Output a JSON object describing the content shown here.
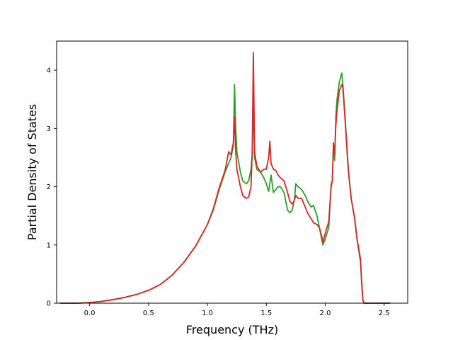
{
  "chart_data": {
    "type": "line",
    "title": "",
    "xlabel": "Frequency (THz)",
    "ylabel": "Partial Density of States",
    "xlim": [
      -0.28,
      2.7
    ],
    "ylim": [
      0,
      4.5
    ],
    "xticks": [
      0.0,
      0.5,
      1.0,
      1.5,
      2.0,
      2.5
    ],
    "xtick_labels": [
      "0.0",
      "0.5",
      "1.0",
      "1.5",
      "2.0",
      "2.5"
    ],
    "yticks": [
      0,
      1,
      2,
      3,
      4
    ],
    "ytick_labels": [
      "0",
      "1",
      "2",
      "3",
      "4"
    ],
    "grid": false,
    "legend": "none",
    "series": [
      {
        "color": "#2ca02c",
        "x": [
          -0.25,
          -0.1,
          0.0,
          0.1,
          0.2,
          0.3,
          0.4,
          0.5,
          0.6,
          0.7,
          0.8,
          0.9,
          1.0,
          1.05,
          1.1,
          1.15,
          1.18,
          1.2,
          1.22,
          1.23,
          1.24,
          1.25,
          1.28,
          1.3,
          1.33,
          1.35,
          1.37,
          1.38,
          1.39,
          1.4,
          1.42,
          1.45,
          1.48,
          1.5,
          1.52,
          1.54,
          1.56,
          1.58,
          1.6,
          1.62,
          1.65,
          1.68,
          1.7,
          1.72,
          1.74,
          1.75,
          1.77,
          1.8,
          1.83,
          1.85,
          1.88,
          1.9,
          1.93,
          1.95,
          1.97,
          1.98,
          2.0,
          2.03,
          2.05,
          2.06,
          2.07,
          2.08,
          2.09,
          2.1,
          2.12,
          2.14,
          2.15,
          2.17,
          2.19,
          2.2,
          2.22,
          2.25,
          2.27,
          2.3,
          2.31,
          2.32,
          2.33,
          2.35,
          2.45,
          2.55
        ],
        "y": [
          0.0,
          0.0,
          0.01,
          0.03,
          0.06,
          0.1,
          0.15,
          0.22,
          0.32,
          0.48,
          0.7,
          0.98,
          1.35,
          1.6,
          1.95,
          2.25,
          2.4,
          2.5,
          2.7,
          3.75,
          3.0,
          2.6,
          2.25,
          2.1,
          2.05,
          2.1,
          2.3,
          2.55,
          3.5,
          2.5,
          2.3,
          2.25,
          2.15,
          2.05,
          1.92,
          2.2,
          1.9,
          1.95,
          2.0,
          2.0,
          1.9,
          1.6,
          1.55,
          1.6,
          1.8,
          2.05,
          2.0,
          1.95,
          1.85,
          1.75,
          1.65,
          1.68,
          1.5,
          1.3,
          1.1,
          1.0,
          1.1,
          1.3,
          2.05,
          2.1,
          2.7,
          2.45,
          3.2,
          3.5,
          3.8,
          3.95,
          3.75,
          3.15,
          2.5,
          2.2,
          1.8,
          1.45,
          1.1,
          0.7,
          0.3,
          0.05,
          0.0,
          0.0,
          0.0,
          0.0
        ]
      },
      {
        "color": "#d62728",
        "x": [
          -0.25,
          -0.1,
          0.0,
          0.1,
          0.2,
          0.3,
          0.4,
          0.5,
          0.6,
          0.7,
          0.8,
          0.9,
          1.0,
          1.05,
          1.1,
          1.15,
          1.18,
          1.2,
          1.22,
          1.23,
          1.24,
          1.25,
          1.28,
          1.3,
          1.33,
          1.35,
          1.37,
          1.38,
          1.39,
          1.4,
          1.42,
          1.45,
          1.48,
          1.5,
          1.52,
          1.53,
          1.54,
          1.56,
          1.58,
          1.6,
          1.62,
          1.65,
          1.68,
          1.7,
          1.72,
          1.74,
          1.75,
          1.77,
          1.8,
          1.83,
          1.85,
          1.88,
          1.9,
          1.93,
          1.95,
          1.97,
          1.98,
          2.0,
          2.03,
          2.05,
          2.06,
          2.07,
          2.08,
          2.09,
          2.1,
          2.12,
          2.14,
          2.15,
          2.17,
          2.19,
          2.2,
          2.22,
          2.25,
          2.27,
          2.3,
          2.31,
          2.32,
          2.33,
          2.35,
          2.45,
          2.55
        ],
        "y": [
          0.0,
          0.0,
          0.01,
          0.03,
          0.06,
          0.1,
          0.15,
          0.22,
          0.32,
          0.48,
          0.7,
          0.98,
          1.35,
          1.62,
          1.98,
          2.28,
          2.6,
          2.55,
          2.75,
          3.2,
          2.6,
          2.3,
          2.0,
          1.85,
          1.8,
          1.82,
          2.0,
          2.6,
          4.3,
          2.6,
          2.35,
          2.25,
          2.3,
          2.3,
          2.5,
          2.78,
          2.4,
          2.3,
          2.28,
          2.2,
          2.15,
          2.1,
          1.9,
          1.75,
          1.7,
          1.78,
          1.85,
          1.8,
          1.8,
          1.65,
          1.55,
          1.45,
          1.38,
          1.35,
          1.3,
          1.15,
          1.05,
          1.2,
          1.4,
          2.0,
          2.1,
          2.75,
          2.55,
          3.05,
          3.3,
          3.65,
          3.75,
          3.7,
          3.1,
          2.45,
          2.2,
          1.8,
          1.45,
          1.1,
          0.75,
          0.35,
          0.05,
          0.0,
          0.0,
          0.0,
          0.0
        ]
      }
    ]
  }
}
